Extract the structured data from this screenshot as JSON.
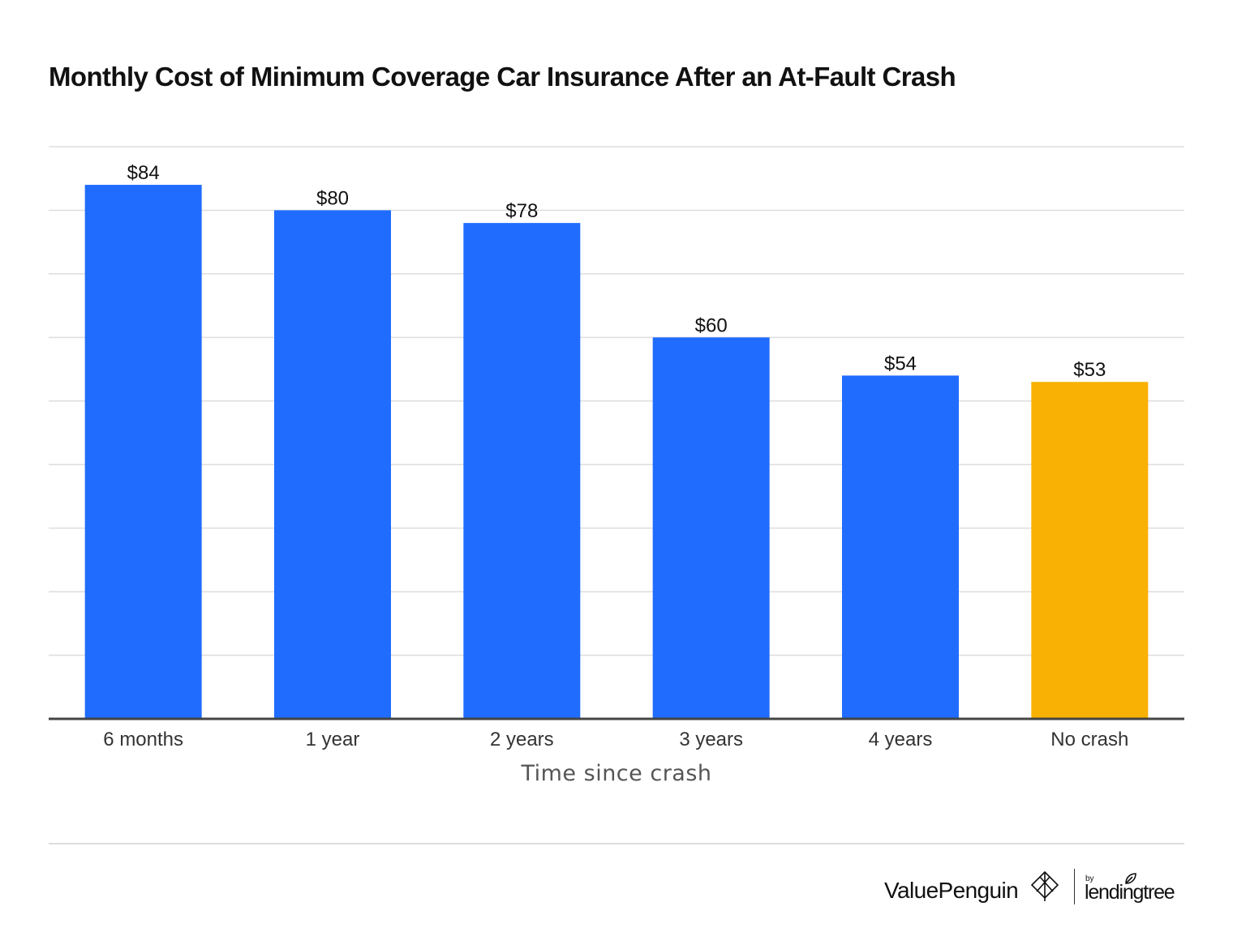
{
  "chart_data": {
    "type": "bar",
    "title": "Monthly Cost of Minimum Coverage Car Insurance After an At-Fault Crash",
    "xlabel": "Time since crash",
    "ylabel": "",
    "categories": [
      "6 months",
      "1 year",
      "2 years",
      "3 years",
      "4 years",
      "No crash"
    ],
    "values": [
      84,
      80,
      78,
      60,
      54,
      53
    ],
    "value_labels": [
      "$84",
      "$80",
      "$78",
      "$60",
      "$54",
      "$53"
    ],
    "bar_colors": [
      "#206cff",
      "#206cff",
      "#206cff",
      "#206cff",
      "#206cff",
      "#f9b104"
    ],
    "ylim": [
      0,
      90
    ],
    "y_gridlines": [
      10,
      20,
      30,
      40,
      50,
      60,
      70,
      80,
      90
    ],
    "grid": true,
    "y_tick_labels_shown": false,
    "legend": "none"
  },
  "colors": {
    "highlight": "#f9b104",
    "primary": "#206cff",
    "gridline": "#dddddd",
    "baseline": "#444444"
  },
  "branding": {
    "value_penguin": "ValuePenguin",
    "by": "by",
    "lendingtree": "lendingtree"
  }
}
